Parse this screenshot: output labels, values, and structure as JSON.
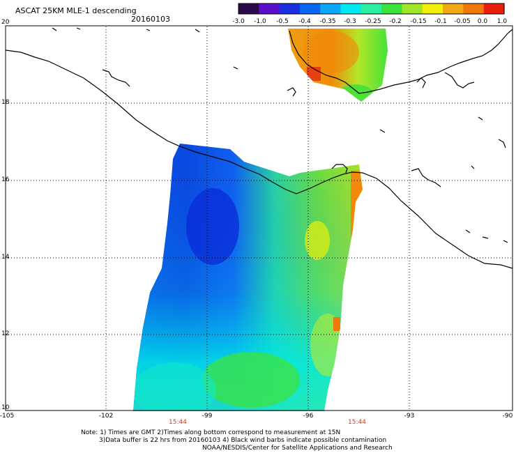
{
  "header": {
    "title": "ASCAT 25KM MLE-1 descending",
    "date": "20160103"
  },
  "colorbar": {
    "labels": [
      "-3.0",
      "-1.0",
      "-0.5",
      "-0.4",
      "-0.35",
      "-0.3",
      "-0.25",
      "-0.2",
      "-0.15",
      "-0.1",
      "-0.05",
      "0.0",
      "1.0"
    ],
    "colors": [
      "#2a0a4a",
      "#5a10c8",
      "#1a30e0",
      "#0a68f0",
      "#0aa8f8",
      "#00e8f0",
      "#28f0a0",
      "#3ce23c",
      "#a0e628",
      "#f0f00a",
      "#f0a814",
      "#f07808",
      "#e81e0a"
    ]
  },
  "axes": {
    "lat_labels": [
      "20",
      "18",
      "16",
      "14",
      "12",
      "10"
    ],
    "lon_labels": [
      "-105",
      "-102",
      "-99",
      "-96",
      "-93",
      "-90"
    ]
  },
  "times": [
    "15:44",
    "15:44"
  ],
  "notes": {
    "line1": "Note: 1) Times are GMT 2)Times along bottom correspond to measurement at 15N",
    "line2": "3)Data buffer is 22 hrs from 20160103 4) Black wind barbs indicate possible contamination",
    "line3": "NOAA/NESDIS/Center for Satellite Applications and Research"
  }
}
